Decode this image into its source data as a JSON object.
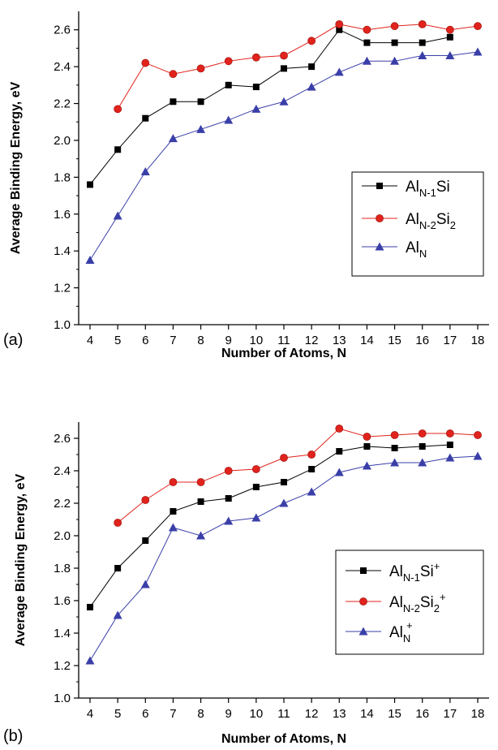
{
  "chart_data": [
    {
      "type": "line",
      "panel_label": "(a)",
      "xlabel": "Number of Atoms, N",
      "ylabel": "Average Binding Energy, eV",
      "xlim": [
        4,
        18
      ],
      "ylim": [
        1.0,
        2.7
      ],
      "x_ticks": [
        "4",
        "5",
        "6",
        "7",
        "8",
        "9",
        "10",
        "11",
        "12",
        "13",
        "14",
        "15",
        "16",
        "17",
        "18"
      ],
      "y_ticks": [
        "1.0",
        "1.2",
        "1.4",
        "1.6",
        "1.8",
        "2.0",
        "2.2",
        "2.4",
        "2.6"
      ],
      "legend_position": "right",
      "series": [
        {
          "name": "AlN-1Si",
          "legend": {
            "base": "Al",
            "sub1": "N-1",
            "mid": "Si",
            "sub2": "",
            "sup": ""
          },
          "marker": "square",
          "color": "#000000",
          "x": [
            4,
            5,
            6,
            7,
            8,
            9,
            10,
            11,
            12,
            13,
            14,
            15,
            16,
            17
          ],
          "y": [
            1.76,
            1.95,
            2.12,
            2.21,
            2.21,
            2.3,
            2.29,
            2.39,
            2.4,
            2.6,
            2.53,
            2.53,
            2.53,
            2.56
          ]
        },
        {
          "name": "AlN-2Si2",
          "legend": {
            "base": "Al",
            "sub1": "N-2",
            "mid": "Si",
            "sub2": "2",
            "sup": ""
          },
          "marker": "circle",
          "color": "#e0231c",
          "x": [
            5,
            6,
            7,
            8,
            9,
            10,
            11,
            12,
            13,
            14,
            15,
            16,
            17,
            18
          ],
          "y": [
            2.17,
            2.42,
            2.36,
            2.39,
            2.43,
            2.45,
            2.46,
            2.54,
            2.63,
            2.6,
            2.62,
            2.63,
            2.6,
            2.62
          ]
        },
        {
          "name": "AlN",
          "legend": {
            "base": "Al",
            "sub1": "N",
            "mid": "",
            "sub2": "",
            "sup": ""
          },
          "marker": "triangle",
          "color": "#3a3fa8",
          "x": [
            4,
            5,
            6,
            7,
            8,
            9,
            10,
            11,
            12,
            13,
            14,
            15,
            16,
            17,
            18
          ],
          "y": [
            1.35,
            1.59,
            1.83,
            2.01,
            2.06,
            2.11,
            2.17,
            2.21,
            2.29,
            2.37,
            2.43,
            2.43,
            2.46,
            2.46,
            2.48
          ]
        }
      ]
    },
    {
      "type": "line",
      "panel_label": "(b)",
      "xlabel": "Number of Atoms, N",
      "ylabel": "Average Binding Energy, eV",
      "xlim": [
        4,
        18
      ],
      "ylim": [
        1.0,
        2.7
      ],
      "x_ticks": [
        "4",
        "5",
        "6",
        "7",
        "8",
        "9",
        "10",
        "11",
        "12",
        "13",
        "14",
        "15",
        "16",
        "17",
        "18"
      ],
      "y_ticks": [
        "1.0",
        "1.2",
        "1.4",
        "1.6",
        "1.8",
        "2.0",
        "2.2",
        "2.4",
        "2.6"
      ],
      "legend_position": "right",
      "series": [
        {
          "name": "AlN-1Si+",
          "legend": {
            "base": "Al",
            "sub1": "N-1",
            "mid": "Si",
            "sub2": "",
            "sup": "+"
          },
          "marker": "square",
          "color": "#000000",
          "x": [
            4,
            5,
            6,
            7,
            8,
            9,
            10,
            11,
            12,
            13,
            14,
            15,
            16,
            17
          ],
          "y": [
            1.56,
            1.8,
            1.97,
            2.15,
            2.21,
            2.23,
            2.3,
            2.33,
            2.41,
            2.52,
            2.55,
            2.54,
            2.55,
            2.56
          ]
        },
        {
          "name": "AlN-2Si2+",
          "legend": {
            "base": "Al",
            "sub1": "N-2",
            "mid": "Si",
            "sub2": "2",
            "sup": "+"
          },
          "marker": "circle",
          "color": "#e0231c",
          "x": [
            5,
            6,
            7,
            8,
            9,
            10,
            11,
            12,
            13,
            14,
            15,
            16,
            17,
            18
          ],
          "y": [
            2.08,
            2.22,
            2.33,
            2.33,
            2.4,
            2.41,
            2.48,
            2.5,
            2.66,
            2.61,
            2.62,
            2.63,
            2.63,
            2.62
          ]
        },
        {
          "name": "AlN+",
          "legend": {
            "base": "Al",
            "sub1": "N",
            "mid": "",
            "sub2": "",
            "sup": "+"
          },
          "marker": "triangle",
          "color": "#3a3fa8",
          "x": [
            4,
            5,
            6,
            7,
            8,
            9,
            10,
            11,
            12,
            13,
            14,
            15,
            16,
            17,
            18
          ],
          "y": [
            1.23,
            1.51,
            1.7,
            2.05,
            2.0,
            2.09,
            2.11,
            2.2,
            2.27,
            2.39,
            2.43,
            2.45,
            2.45,
            2.48,
            2.49
          ]
        }
      ]
    }
  ]
}
